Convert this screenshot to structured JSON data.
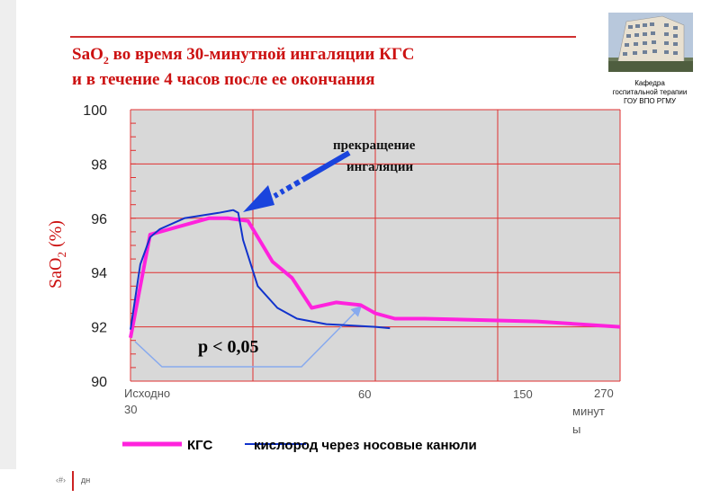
{
  "slide": {
    "title_line1_pre": "SaO",
    "title_sub": "2",
    "title_line1_post": " во время 30-минутной ингаляции КГС",
    "title_line2": "и в течение 4 часов после ее окончания",
    "logo_caption": [
      "Кафедра",
      "госпитальной терапии",
      "ГОУ ВПО РГМУ"
    ],
    "logo_icon": "building-photo-icon",
    "footer_num": "‹#›",
    "footer_text": "дн"
  },
  "chart_data": {
    "type": "line",
    "ylabel_main": "SaO",
    "ylabel_sub": "2",
    "ylabel_tail": " (%)",
    "ylim": [
      90,
      100
    ],
    "yticks": [
      "100",
      "98",
      "96",
      "94",
      "92",
      "90"
    ],
    "xtick_labels": [
      {
        "key": "baseline",
        "lines": [
          "Исходно",
          "30"
        ]
      },
      {
        "key": "t60",
        "lines": [
          "60"
        ]
      },
      {
        "key": "t150",
        "lines": [
          "150"
        ]
      },
      {
        "key": "t270",
        "lines": [
          "270",
          "минут",
          "ы"
        ]
      }
    ],
    "grid": true,
    "series": [
      {
        "name": "КГС",
        "color": "#ff22dd",
        "points": [
          [
            0.0,
            91.6
          ],
          [
            0.04,
            95.4
          ],
          [
            0.16,
            96.0
          ],
          [
            0.2,
            96.0
          ],
          [
            0.24,
            95.9
          ],
          [
            0.29,
            94.4
          ],
          [
            0.33,
            93.8
          ],
          [
            0.37,
            92.7
          ],
          [
            0.42,
            92.9
          ],
          [
            0.47,
            92.8
          ],
          [
            0.5,
            92.5
          ],
          [
            0.54,
            92.3
          ],
          [
            0.6,
            92.3
          ],
          [
            0.83,
            92.2
          ],
          [
            1.0,
            92.0
          ]
        ]
      },
      {
        "name": "кислород через носовые канюли",
        "color": "#1133cc",
        "points": [
          [
            0.0,
            91.9
          ],
          [
            0.02,
            94.3
          ],
          [
            0.04,
            95.3
          ],
          [
            0.06,
            95.6
          ],
          [
            0.11,
            96.0
          ],
          [
            0.18,
            96.2
          ],
          [
            0.21,
            96.3
          ],
          [
            0.22,
            96.2
          ],
          [
            0.23,
            95.2
          ],
          [
            0.26,
            93.5
          ],
          [
            0.3,
            92.7
          ],
          [
            0.34,
            92.3
          ],
          [
            0.4,
            92.1
          ],
          [
            0.5,
            92.0
          ],
          [
            0.53,
            91.95
          ]
        ]
      }
    ],
    "annotations": {
      "arrow_text": [
        "прекращение",
        "ингаляции"
      ],
      "p_text": "p < 0,05"
    },
    "colors": {
      "plot_bg": "#d8d8d8",
      "grid": "#e03030",
      "arrow": "#1a44dd",
      "bracket": "#88aaee"
    }
  }
}
